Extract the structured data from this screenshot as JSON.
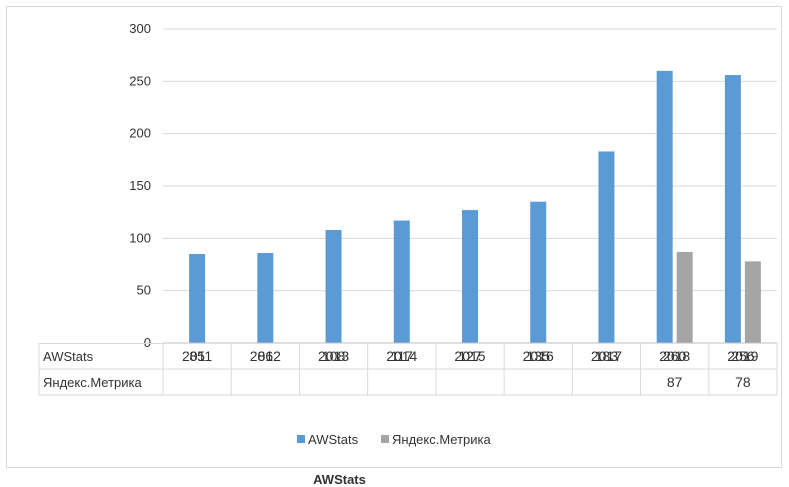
{
  "chart_data": {
    "type": "bar",
    "categories": [
      "2011",
      "2012",
      "2013",
      "2014",
      "2015",
      "2016",
      "2017",
      "2018",
      "2019"
    ],
    "series": [
      {
        "name": "AWStats",
        "color": "#5b9bd5",
        "values": [
          85,
          86,
          108,
          117,
          127,
          135,
          183,
          260,
          256
        ],
        "table_values": [
          "85",
          "86",
          "108",
          "117",
          "127",
          "135",
          "183",
          "260",
          "256"
        ]
      },
      {
        "name": "Яндекс.Метрика",
        "color": "#a5a5a5",
        "values": [
          null,
          null,
          null,
          null,
          null,
          null,
          null,
          87,
          78
        ],
        "table_values": [
          "",
          "",
          "",
          "",
          "",
          "",
          "",
          "87",
          "78"
        ]
      }
    ],
    "ylim": [
      0,
      300
    ],
    "yticks": [
      "0",
      "50",
      "100",
      "150",
      "200",
      "250",
      "300"
    ],
    "grid": true,
    "legend": "bottom",
    "data_table": true
  },
  "caption": "AWStats"
}
